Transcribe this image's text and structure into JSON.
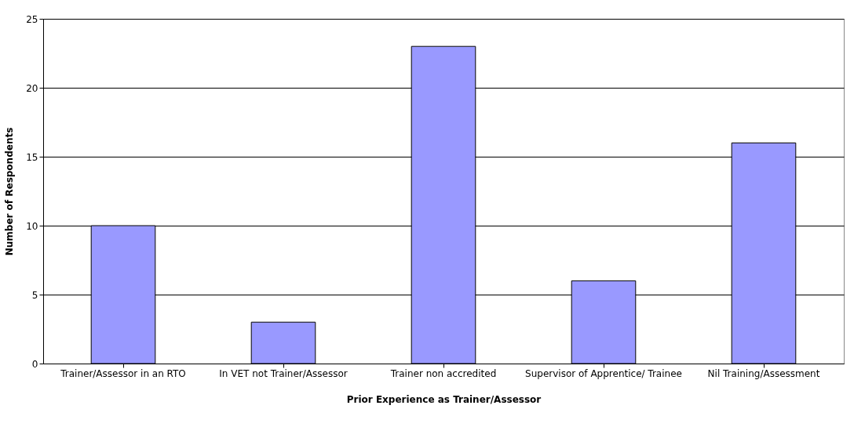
{
  "chart_data": {
    "type": "bar",
    "xlabel": "Prior Experience as Trainer/Assessor",
    "ylabel": "Number of Respondents",
    "categories": [
      "Trainer/Assessor in an RTO",
      "In VET not Trainer/Assessor",
      "Trainer non accredited",
      "Supervisor of Apprentice/ Trainee",
      "Nil Training/Assessment"
    ],
    "values": [
      10,
      3,
      23,
      6,
      16
    ],
    "color": "#9999ff",
    "ylim": [
      0,
      25
    ],
    "yticks": [
      0,
      5,
      10,
      15,
      20,
      25
    ],
    "grid": "y"
  }
}
